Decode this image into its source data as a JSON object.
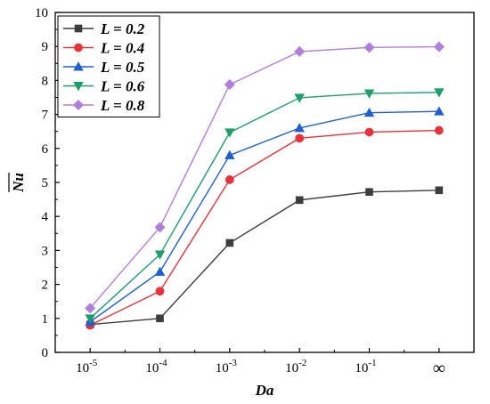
{
  "chart_data": {
    "type": "line",
    "categories": [
      "-5",
      "-4",
      "-3",
      "-2",
      "-1",
      "∞"
    ],
    "category_base": "10",
    "xlabel": "Da",
    "ylabel": "Nu",
    "ylim": [
      0,
      10
    ],
    "yticks": [
      "0",
      "1",
      "2",
      "3",
      "4",
      "5",
      "6",
      "7",
      "8",
      "9",
      "10"
    ],
    "grid": false,
    "legend_position": "top-left",
    "series": [
      {
        "name": "L = 0.2",
        "color": "#3d3d3d",
        "marker": "square",
        "values": [
          0.82,
          1.0,
          3.22,
          4.48,
          4.72,
          4.77
        ]
      },
      {
        "name": "L = 0.4",
        "color": "#e8323c",
        "marker": "circle",
        "values": [
          0.8,
          1.8,
          5.08,
          6.3,
          6.48,
          6.53
        ]
      },
      {
        "name": "L = 0.5",
        "color": "#1f5fd1",
        "marker": "triangle-up",
        "values": [
          0.9,
          2.37,
          5.8,
          6.6,
          7.05,
          7.09
        ]
      },
      {
        "name": "L = 0.6",
        "color": "#1d9e6a",
        "marker": "triangle-down",
        "values": [
          1.0,
          2.88,
          6.47,
          7.49,
          7.62,
          7.65
        ]
      },
      {
        "name": "L = 0.8",
        "color": "#b07fdc",
        "marker": "diamond",
        "values": [
          1.3,
          3.68,
          7.88,
          8.85,
          8.97,
          8.99
        ]
      }
    ]
  }
}
